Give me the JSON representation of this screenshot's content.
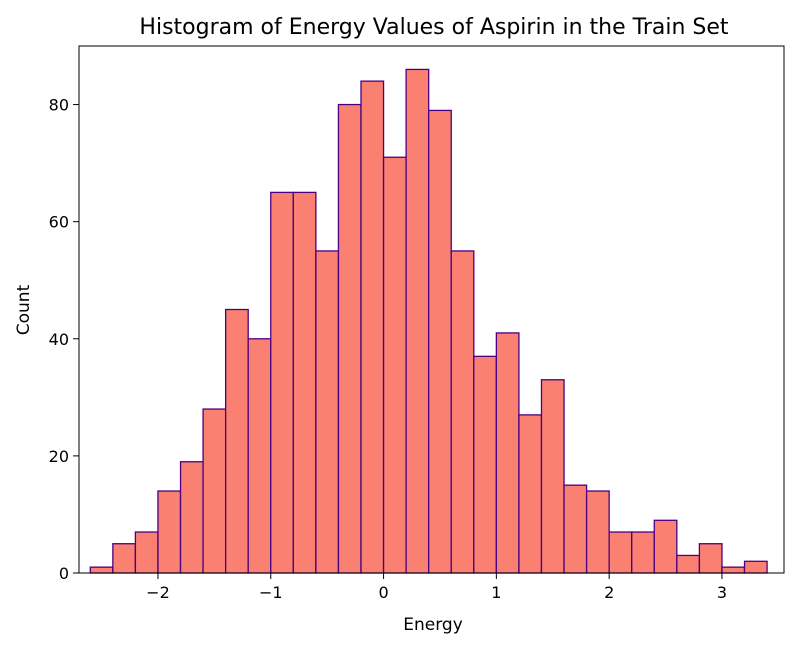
{
  "chart_data": {
    "type": "bar",
    "subtype": "histogram",
    "title": "Histogram of Energy Values of Aspirin in the Train Set",
    "xlabel": "Energy",
    "ylabel": "Count",
    "xlim": [
      -2.7,
      3.55
    ],
    "ylim": [
      0,
      90
    ],
    "bin_start": -2.6,
    "bin_width": 0.2,
    "counts": [
      1,
      5,
      7,
      14,
      19,
      28,
      45,
      40,
      65,
      65,
      55,
      80,
      84,
      71,
      86,
      79,
      55,
      37,
      41,
      27,
      33,
      15,
      14,
      7,
      7,
      9,
      3,
      5,
      1,
      2
    ],
    "x_ticks": [
      -2,
      -1,
      0,
      1,
      2,
      3
    ],
    "x_tick_labels": [
      "−2",
      "−1",
      "0",
      "1",
      "2",
      "3"
    ],
    "y_ticks": [
      0,
      20,
      40,
      60,
      80
    ],
    "y_tick_labels": [
      "0",
      "20",
      "40",
      "60",
      "80"
    ],
    "grid": false,
    "bar_color": "#fa8072",
    "edge_color": "#4b0082"
  }
}
